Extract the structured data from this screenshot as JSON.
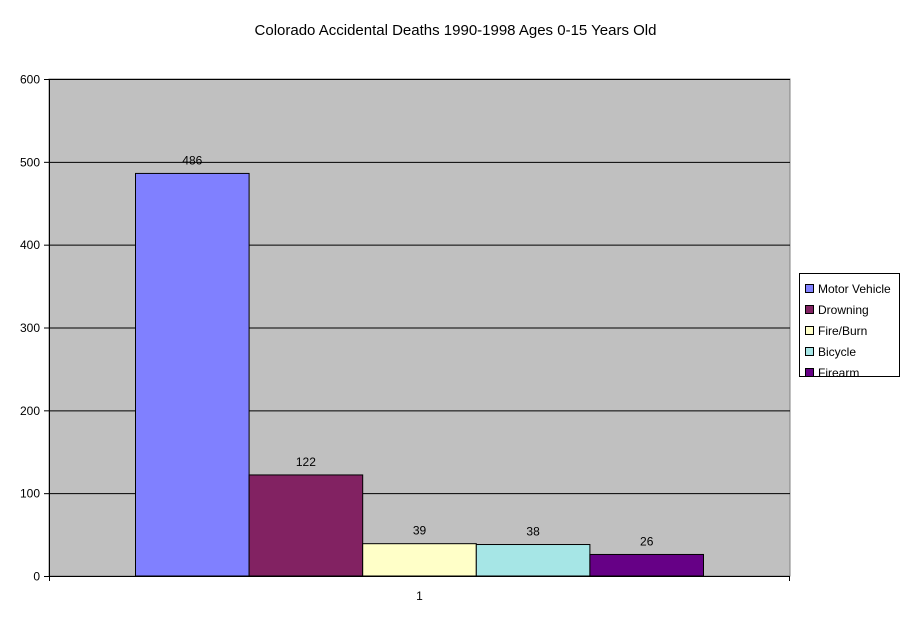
{
  "chart_data": {
    "type": "bar",
    "title": "Colorado Accidental Deaths 1990-1998 Ages 0-15 Years Old",
    "categories": [
      "1"
    ],
    "series": [
      {
        "name": "Motor Vehicle",
        "values": [
          486
        ],
        "color": "#8080ff"
      },
      {
        "name": "Drowning",
        "values": [
          122
        ],
        "color": "#822262"
      },
      {
        "name": "Fire/Burn",
        "values": [
          39
        ],
        "color": "#ffffc8"
      },
      {
        "name": "Bicycle",
        "values": [
          38
        ],
        "color": "#a6e6e6"
      },
      {
        "name": "Firearm",
        "values": [
          26
        ],
        "color": "#660086"
      }
    ],
    "xlabel": "",
    "ylabel": "",
    "ylim": [
      0,
      600
    ],
    "yticks": [
      0,
      100,
      200,
      300,
      400,
      500,
      600
    ],
    "grid": true,
    "legend_position": "right",
    "plot_background": "#c0c0c0"
  }
}
